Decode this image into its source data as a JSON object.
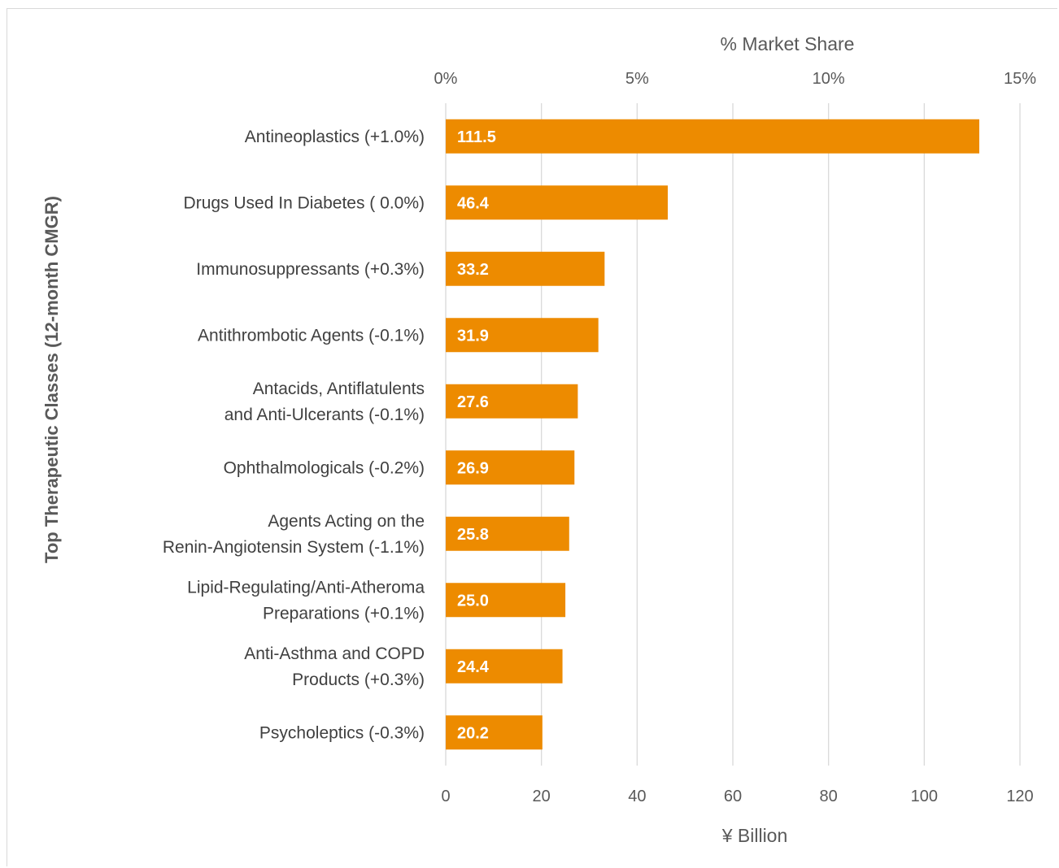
{
  "chart_data": {
    "type": "bar",
    "orientation": "horizontal",
    "ylabel": "Top Therapeutic Classes (12-month CMGR)",
    "xlabel": "¥ Billion",
    "x2label": "% Market Share",
    "xlim": [
      0,
      120
    ],
    "xticks": [
      0,
      20,
      40,
      60,
      80,
      100,
      120
    ],
    "x2lim_percent": [
      0,
      15
    ],
    "x2ticks": [
      "0%",
      "5%",
      "10%",
      "15%"
    ],
    "grid": true,
    "bar_color": "#ED8B00",
    "categories": [
      [
        "Antineoplastics (+1.0%)"
      ],
      [
        "Drugs Used In Diabetes ( 0.0%)"
      ],
      [
        "Immunosuppressants (+0.3%)"
      ],
      [
        "Antithrombotic Agents (-0.1%)"
      ],
      [
        "Antacids, Antiflatulents",
        "and Anti-Ulcerants  (-0.1%)"
      ],
      [
        "Ophthalmologicals (-0.2%)"
      ],
      [
        "Agents Acting on the",
        "Renin-Angiotensin System (-1.1%)"
      ],
      [
        "Lipid-Regulating/Anti-Atheroma",
        "Preparations (+0.1%)"
      ],
      [
        "Anti-Asthma and COPD",
        "Products  (+0.3%)"
      ],
      [
        "Psycholeptics (-0.3%)"
      ]
    ],
    "values": [
      111.5,
      46.4,
      33.2,
      31.9,
      27.6,
      26.9,
      25.8,
      25.0,
      24.4,
      20.2
    ],
    "data_labels": [
      "111.5",
      "46.4",
      "33.2",
      "31.9",
      "27.6",
      "26.9",
      "25.8",
      "25.0",
      "24.4",
      "20.2"
    ]
  }
}
